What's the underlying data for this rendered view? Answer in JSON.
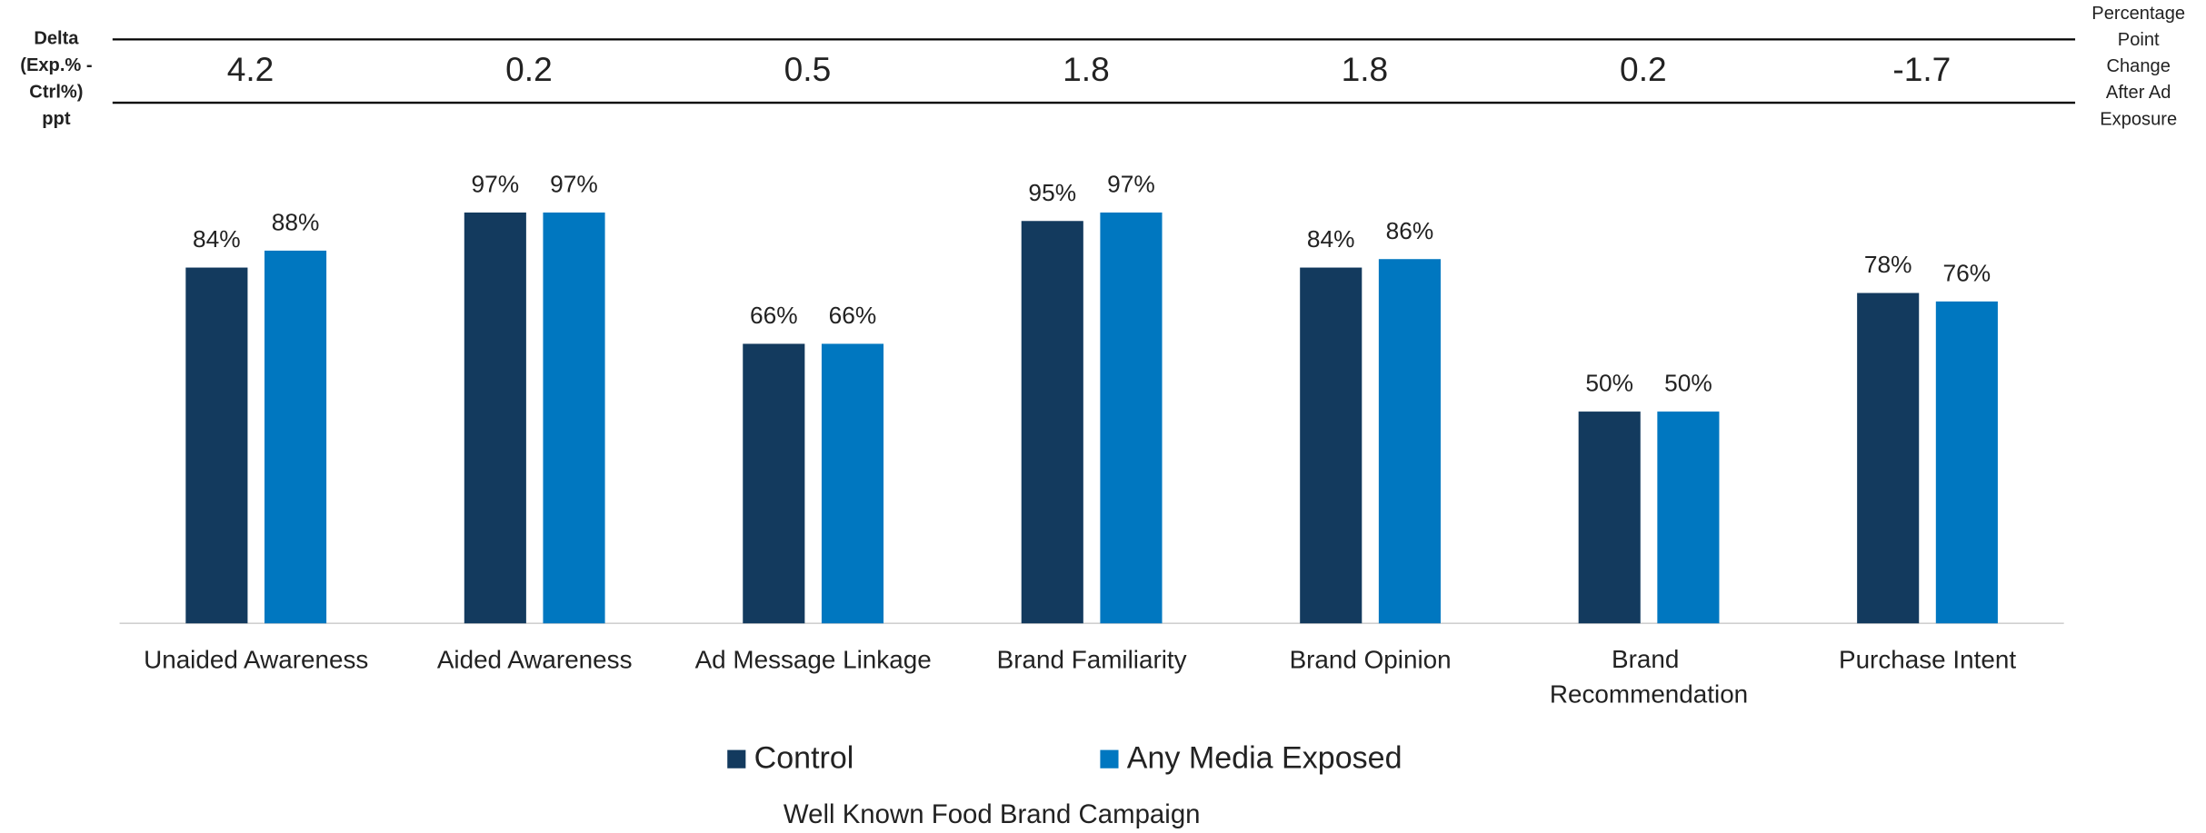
{
  "chart_data": {
    "type": "bar",
    "title": "Well Known Food Brand Campaign",
    "delta_label": [
      "Delta",
      "(Exp.% -",
      "Ctrl%)",
      "ppt"
    ],
    "delta_note": [
      "Percentage",
      "Point",
      "Change",
      "After Ad",
      "Exposure"
    ],
    "categories": [
      "Unaided Awareness",
      "Aided Awareness",
      "Ad Message Linkage",
      "Brand Familiarity",
      "Brand Opinion",
      "Brand Recommendation",
      "Purchase Intent"
    ],
    "deltas": [
      4.2,
      0.2,
      0.5,
      1.8,
      1.8,
      0.2,
      -1.7
    ],
    "series": [
      {
        "name": "Control",
        "color": "#133a5e",
        "values": [
          84,
          97,
          66,
          95,
          84,
          50,
          78
        ],
        "value_labels": [
          "84%",
          "97%",
          "66%",
          "95%",
          "84%",
          "50%",
          "78%"
        ]
      },
      {
        "name": "Any Media Exposed",
        "color": "#0077c0",
        "values": [
          88,
          97,
          66,
          97,
          86,
          50,
          76
        ],
        "value_labels": [
          "88%",
          "97%",
          "66%",
          "97%",
          "86%",
          "50%",
          "76%"
        ]
      }
    ],
    "ylim": [
      0,
      100
    ]
  }
}
